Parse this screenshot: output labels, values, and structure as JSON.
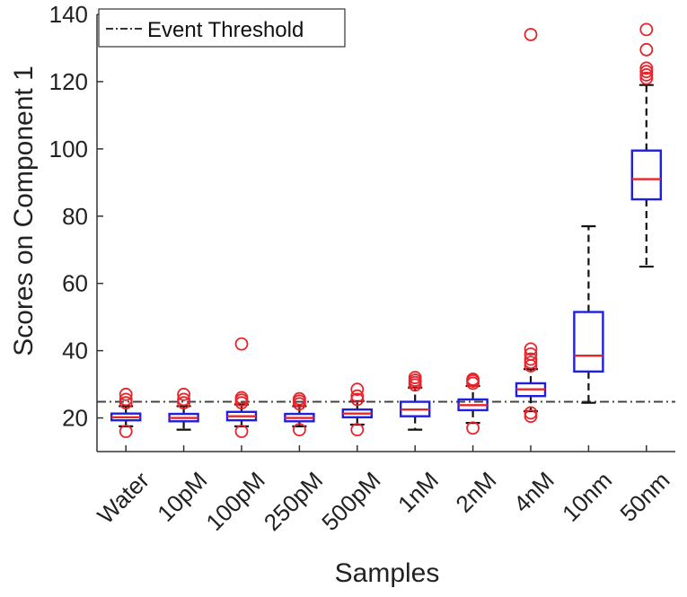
{
  "chart_data": {
    "type": "box",
    "xlabel": "Samples",
    "ylabel": "Scores on Component 1",
    "ylim": [
      10,
      140
    ],
    "yticks": [
      20,
      40,
      60,
      80,
      100,
      120,
      140
    ],
    "threshold": {
      "label": "Event Threshold",
      "value": 24.8
    },
    "legend_position": "top-left",
    "colors": {
      "box": "#1f1fe0",
      "median": "#e8242b",
      "outlier": "#e8242b",
      "whisker": "#111111",
      "threshold": "#444444"
    },
    "categories": [
      "Water",
      "10pM",
      "100pM",
      "250pM",
      "500pM",
      "1nM",
      "2nM",
      "4nM",
      "10nm",
      "50nm"
    ],
    "boxes": [
      {
        "label": "Water",
        "whisker_low": 17.5,
        "q1": 19.3,
        "median": 20.2,
        "q3": 21.3,
        "whisker_high": 23.5,
        "outliers": [
          16,
          24.5,
          25.5,
          27
        ]
      },
      {
        "label": "10pM",
        "whisker_low": 16.5,
        "q1": 19.0,
        "median": 20.0,
        "q3": 21.2,
        "whisker_high": 23.5,
        "outliers": [
          24.5,
          25.5,
          27
        ]
      },
      {
        "label": "100pM",
        "whisker_low": 17.5,
        "q1": 19.3,
        "median": 20.5,
        "q3": 21.8,
        "whisker_high": 24.0,
        "outliers": [
          16,
          24.5,
          25.3,
          26,
          42
        ]
      },
      {
        "label": "250pM",
        "whisker_low": 17.5,
        "q1": 19.0,
        "median": 20.0,
        "q3": 21.2,
        "whisker_high": 23.5,
        "outliers": [
          16.5,
          24.2,
          25,
          25.7
        ]
      },
      {
        "label": "500pM",
        "whisker_low": 18.0,
        "q1": 20.2,
        "median": 21.3,
        "q3": 22.5,
        "whisker_high": 25.0,
        "outliers": [
          16.5,
          25.5,
          26.5,
          28.5
        ]
      },
      {
        "label": "1nM",
        "whisker_low": 16.5,
        "q1": 20.5,
        "median": 22.5,
        "q3": 24.8,
        "whisker_high": 29.0,
        "outliers": [
          29.8,
          30.5,
          31.2,
          32
        ]
      },
      {
        "label": "2nM",
        "whisker_low": 18.5,
        "q1": 22.3,
        "median": 23.8,
        "q3": 25.5,
        "whisker_high": 29.5,
        "outliers": [
          17,
          30.3,
          31,
          31.5
        ]
      },
      {
        "label": "4nM",
        "whisker_low": 22.0,
        "q1": 26.5,
        "median": 28.5,
        "q3": 30.3,
        "whisker_high": 34.5,
        "outliers": [
          20.5,
          21.5,
          35.5,
          36.5,
          37.5,
          39,
          40.5,
          134
        ]
      },
      {
        "label": "10nm",
        "whisker_low": 24.5,
        "q1": 33.8,
        "median": 38.5,
        "q3": 51.5,
        "whisker_high": 77.0,
        "outliers": []
      },
      {
        "label": "50nm",
        "whisker_low": 65.0,
        "q1": 85.0,
        "median": 91.0,
        "q3": 99.5,
        "whisker_high": 119.0,
        "outliers": [
          121,
          122,
          123,
          124,
          129.5,
          135.5
        ]
      }
    ]
  }
}
